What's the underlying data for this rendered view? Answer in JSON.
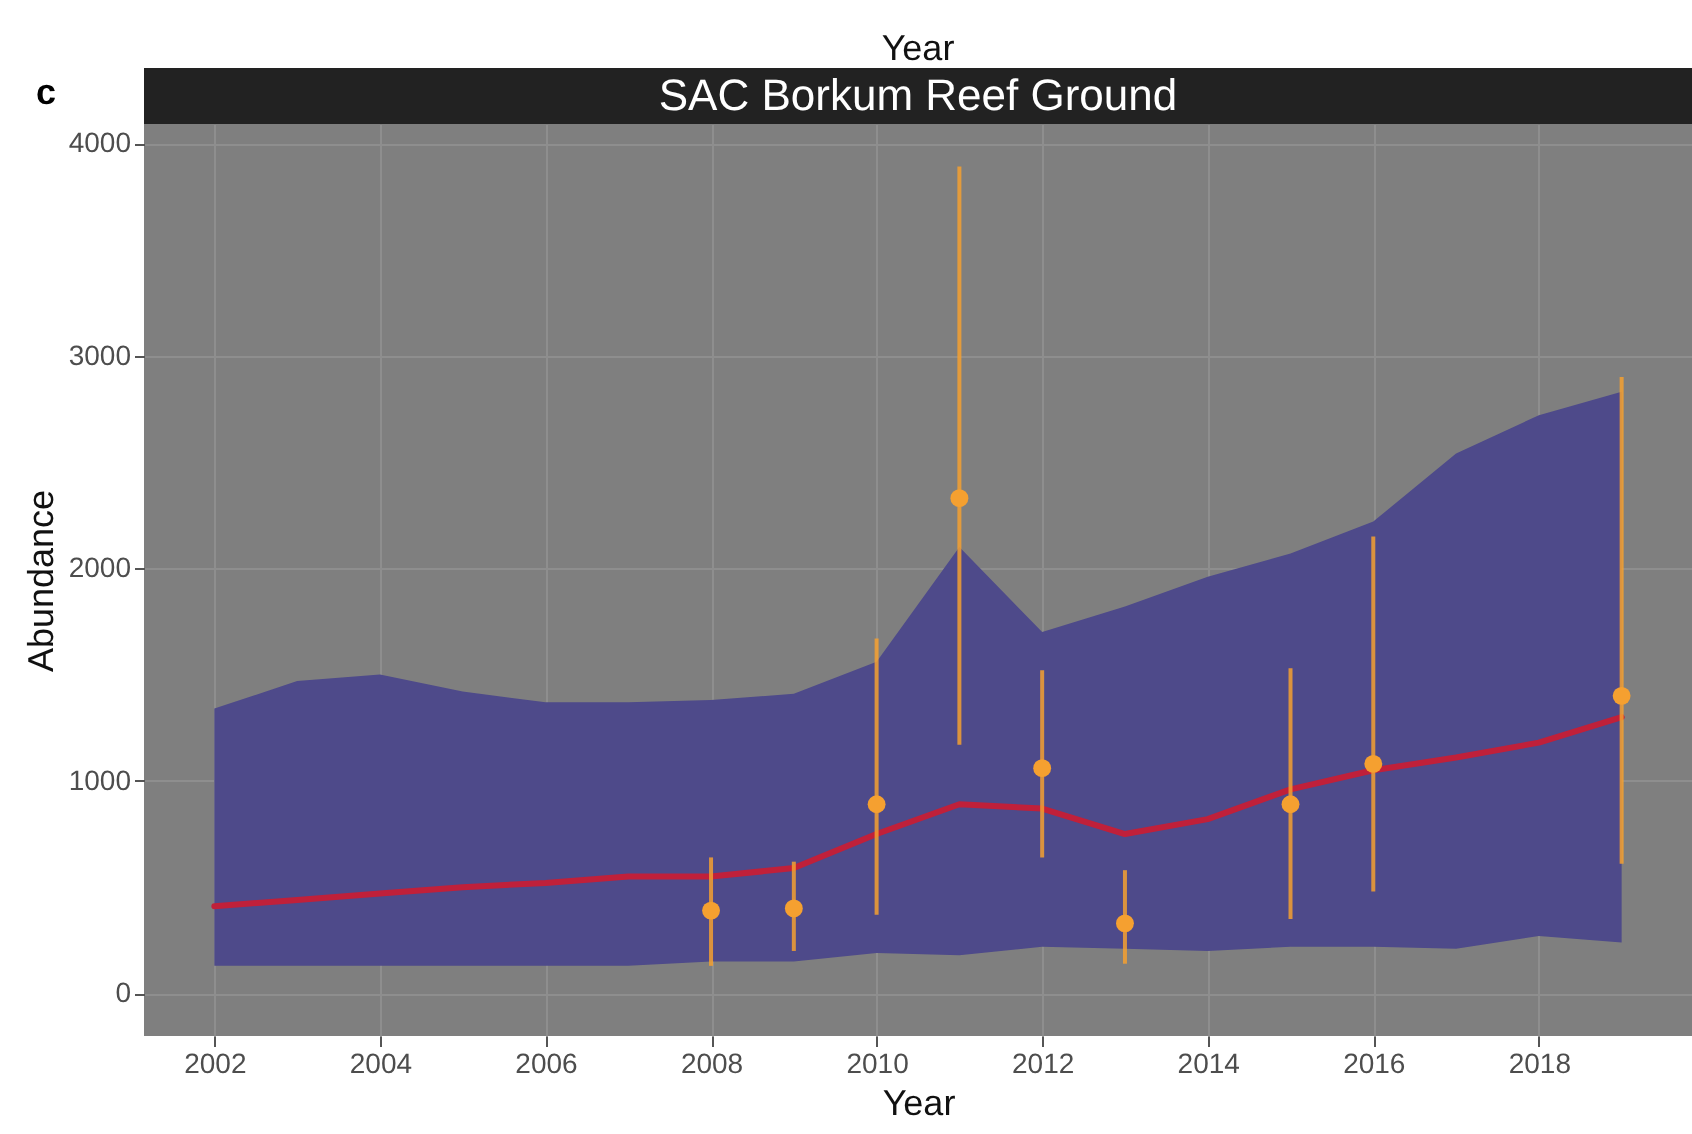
{
  "chart_data": {
    "type": "line",
    "title": "SAC Borkum Reef Ground",
    "xlabel": "Year",
    "ylabel": "Abundance",
    "annotations": [
      "c",
      "Year"
    ],
    "xlim": [
      2001.15,
      2019.85
    ],
    "xticks": [
      2002,
      2004,
      2006,
      2008,
      2010,
      2012,
      2014,
      2016,
      2018
    ],
    "ylim": [
      -200,
      4090
    ],
    "yticks": [
      0,
      1000,
      2000,
      3000,
      4000
    ],
    "grid": true,
    "series": [
      {
        "type": "line",
        "color": "#c0203a",
        "x": [
          2002,
          2003,
          2004,
          2005,
          2006,
          2007,
          2008,
          2009,
          2010,
          2011,
          2012,
          2013,
          2014,
          2015,
          2016,
          2017,
          2018,
          2019
        ],
        "values": [
          410,
          440,
          470,
          500,
          520,
          550,
          550,
          590,
          750,
          890,
          870,
          750,
          820,
          960,
          1050,
          1110,
          1180,
          1300
        ],
        "lower": [
          130,
          130,
          130,
          130,
          130,
          130,
          150,
          150,
          190,
          180,
          220,
          210,
          200,
          220,
          220,
          210,
          270,
          240
        ],
        "upper": [
          1340,
          1470,
          1500,
          1420,
          1370,
          1370,
          1380,
          1410,
          1560,
          2100,
          1700,
          1820,
          1960,
          2070,
          2220,
          2540,
          2720,
          2830
        ]
      },
      {
        "type": "scatter",
        "color": "#f5a030",
        "marker": "circle",
        "x": [
          2008,
          2009,
          2010,
          2011,
          2012,
          2013,
          2015,
          2016,
          2019
        ],
        "values": [
          390,
          400,
          890,
          2330,
          1060,
          330,
          890,
          1080,
          1400
        ],
        "errors": [
          [
            130,
            640
          ],
          [
            200,
            620
          ],
          [
            370,
            1670
          ],
          [
            1170,
            3890
          ],
          [
            640,
            1520
          ],
          [
            140,
            580
          ],
          [
            350,
            1530
          ],
          [
            480,
            2150
          ],
          [
            610,
            2900
          ]
        ]
      }
    ]
  }
}
